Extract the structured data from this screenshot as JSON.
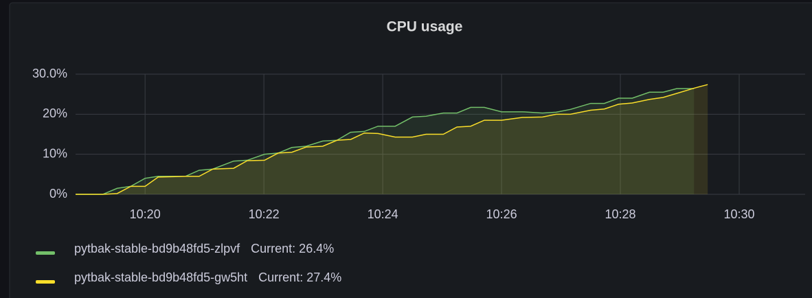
{
  "chart_data": {
    "type": "line",
    "title": "CPU usage",
    "x": [
      18.83,
      19.06,
      19.29,
      19.53,
      19.76,
      20.0,
      20.22,
      20.45,
      20.68,
      20.91,
      21.14,
      21.49,
      21.72,
      22.01,
      22.24,
      22.47,
      22.71,
      22.99,
      23.23,
      23.46,
      23.69,
      23.92,
      24.21,
      24.5,
      24.73,
      25.02,
      25.25,
      25.48,
      25.71,
      26.0,
      26.35,
      26.69,
      26.92,
      27.16,
      27.5,
      27.73,
      27.97,
      28.2,
      28.49,
      28.72,
      28.95,
      29.24,
      29.47
    ],
    "series": [
      {
        "name": "pytbak-stable-bd9b48fd5-zlpvf",
        "current_label": "Current: 26.4%",
        "color": "#73bf69",
        "values": [
          0,
          0,
          0,
          1.5,
          2,
          4,
          4.5,
          4.5,
          4.5,
          6,
          6.3,
          8.3,
          8.5,
          10,
          10.3,
          11.7,
          12,
          13.3,
          13.5,
          15.5,
          15.7,
          17,
          17,
          19.3,
          19.5,
          20.3,
          20.3,
          21.7,
          21.7,
          20.6,
          20.6,
          20.3,
          20.5,
          21.2,
          22.7,
          22.7,
          24,
          24,
          25.5,
          25.5,
          26.4,
          26.4,
          null
        ]
      },
      {
        "name": "pytbak-stable-bd9b48fd5-gw5ht",
        "current_label": "Current: 27.4%",
        "color": "#fade2a",
        "values": [
          0,
          0,
          0,
          0.2,
          2,
          2,
          4.3,
          4.4,
          4.5,
          4.5,
          6.3,
          6.5,
          8.4,
          8.5,
          10.3,
          10.5,
          11.8,
          12,
          13.5,
          13.7,
          15.3,
          15.2,
          14.3,
          14.3,
          15,
          15,
          16.8,
          17,
          18.5,
          18.5,
          19.2,
          19.3,
          20,
          20,
          21,
          21.3,
          22.5,
          22.8,
          23.7,
          24.2,
          25.2,
          26.5,
          27.4
        ]
      }
    ],
    "xlim": [
      18.83,
      31.11
    ],
    "xticks": [
      {
        "value": 20,
        "label": "10:20"
      },
      {
        "value": 22,
        "label": "10:22"
      },
      {
        "value": 24,
        "label": "10:24"
      },
      {
        "value": 26,
        "label": "10:26"
      },
      {
        "value": 28,
        "label": "10:28"
      },
      {
        "value": 30,
        "label": "10:30"
      }
    ],
    "ylim": [
      0,
      30
    ],
    "yticks": [
      {
        "value": 0,
        "label": "0%"
      },
      {
        "value": 10,
        "label": "10%"
      },
      {
        "value": 20,
        "label": "20%"
      },
      {
        "value": 30,
        "label": "30.0%"
      }
    ],
    "grid": true,
    "fill_area": true
  }
}
